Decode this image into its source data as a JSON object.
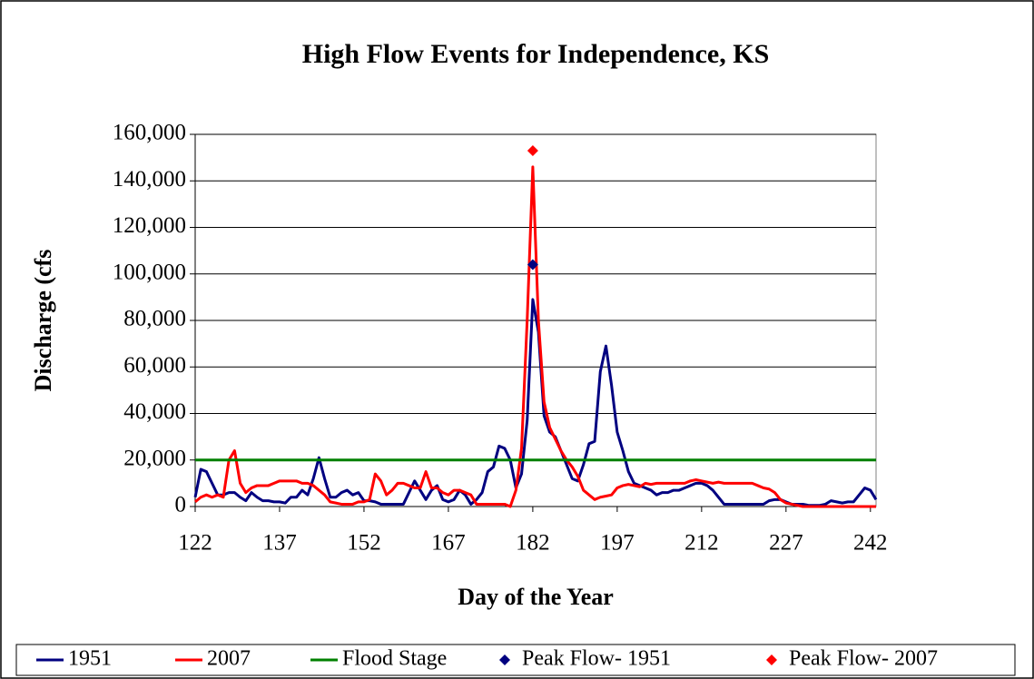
{
  "chart_data": {
    "type": "line",
    "title": "High Flow Events for Independence, KS",
    "xlabel": "Day of the Year",
    "ylabel": "Discharge (cfs",
    "x": [
      122,
      123,
      124,
      125,
      126,
      127,
      128,
      129,
      130,
      131,
      132,
      133,
      134,
      135,
      136,
      137,
      138,
      139,
      140,
      141,
      142,
      143,
      144,
      145,
      146,
      147,
      148,
      149,
      150,
      151,
      152,
      153,
      154,
      155,
      156,
      157,
      158,
      159,
      160,
      161,
      162,
      163,
      164,
      165,
      166,
      167,
      168,
      169,
      170,
      171,
      172,
      173,
      174,
      175,
      176,
      177,
      178,
      179,
      180,
      181,
      182,
      183,
      184,
      185,
      186,
      187,
      188,
      189,
      190,
      191,
      192,
      193,
      194,
      195,
      196,
      197,
      198,
      199,
      200,
      201,
      202,
      203,
      204,
      205,
      206,
      207,
      208,
      209,
      210,
      211,
      212,
      213,
      214,
      215,
      216,
      217,
      218,
      219,
      220,
      221,
      222,
      223,
      224,
      225,
      226,
      227,
      228,
      229,
      230,
      231,
      232,
      233,
      234,
      235,
      236,
      237,
      238,
      239,
      240,
      241,
      242,
      243
    ],
    "series": [
      {
        "name": "1951",
        "color": "#000080",
        "values": [
          4000,
          16000,
          15000,
          10000,
          5000,
          5000,
          6000,
          6000,
          4000,
          2500,
          6000,
          4000,
          2500,
          2500,
          2000,
          2000,
          1500,
          4000,
          4000,
          7000,
          5000,
          12000,
          21000,
          12000,
          4000,
          4000,
          6000,
          7000,
          5000,
          6000,
          2500,
          2500,
          2000,
          1000,
          1000,
          1000,
          1000,
          1000,
          6000,
          11000,
          7000,
          3000,
          7000,
          9000,
          3000,
          2000,
          3000,
          7000,
          5000,
          1000,
          3000,
          6000,
          15000,
          17000,
          26000,
          25000,
          20000,
          8000,
          14000,
          37000,
          89000,
          75000,
          39000,
          32000,
          30000,
          24000,
          18000,
          12000,
          11000,
          18000,
          27000,
          28000,
          58000,
          69000,
          52000,
          32000,
          24000,
          15000,
          10000,
          9000,
          8000,
          7000,
          5000,
          6000,
          6000,
          7000,
          7000,
          8000,
          9000,
          10000,
          10000,
          9000,
          7000,
          4000,
          1000,
          1000,
          1000,
          1000,
          1000,
          1000,
          1000,
          1000,
          2500,
          3000,
          3000,
          2000,
          1000,
          1000,
          1000,
          500,
          500,
          500,
          1000,
          2500,
          2000,
          1500,
          2000,
          2000,
          5000,
          8000,
          7000,
          3000
        ]
      },
      {
        "name": "2007",
        "color": "#ff0000",
        "values": [
          2000,
          4000,
          5000,
          4000,
          5000,
          4000,
          20000,
          24000,
          10000,
          6000,
          8000,
          9000,
          9000,
          9000,
          10000,
          11000,
          11000,
          11000,
          11000,
          10000,
          10000,
          9000,
          7000,
          5000,
          2000,
          1500,
          1000,
          1000,
          1000,
          2000,
          2000,
          3000,
          14000,
          11000,
          5000,
          7000,
          10000,
          10000,
          9000,
          8000,
          8000,
          15000,
          8000,
          8000,
          6000,
          5000,
          7000,
          7000,
          6000,
          5000,
          1000,
          1000,
          1000,
          1000,
          1000,
          1000,
          0,
          7000,
          25000,
          80000,
          146000,
          80000,
          45000,
          34000,
          29000,
          24000,
          20000,
          17000,
          13000,
          7000,
          5000,
          3000,
          4000,
          4500,
          5000,
          8000,
          9000,
          9500,
          9000,
          8500,
          10000,
          9500,
          10000,
          10000,
          10000,
          10000,
          10000,
          10000,
          11000,
          11500,
          11000,
          10500,
          10000,
          10500,
          10000,
          10000,
          10000,
          10000,
          10000,
          10000,
          9000,
          8000,
          7500,
          6000,
          3000,
          1500,
          1000,
          500,
          0,
          0,
          0,
          0,
          0,
          0,
          0,
          0,
          0,
          0,
          0,
          0,
          0,
          0
        ]
      },
      {
        "name": "Flood Stage",
        "color": "#008000",
        "x": [
          122,
          243
        ],
        "values": [
          20000,
          20000
        ]
      },
      {
        "name": "Peak Flow- 1951",
        "color": "#000080",
        "marker": "diamond",
        "x": [
          182
        ],
        "values": [
          104000
        ]
      },
      {
        "name": "Peak Flow- 2007",
        "color": "#ff0000",
        "marker": "diamond",
        "x": [
          182
        ],
        "values": [
          153000
        ]
      }
    ],
    "xlim": [
      122,
      243
    ],
    "xticks": [
      122,
      137,
      152,
      167,
      182,
      197,
      212,
      227,
      242
    ],
    "ylim": [
      0,
      160000
    ],
    "yticks": [
      0,
      {
        "value": 20000,
        "label": "20,000"
      },
      {
        "value": 40000,
        "label": "40,000"
      },
      {
        "value": 60000,
        "label": "60,000"
      },
      {
        "value": 80000,
        "label": "80,000"
      },
      {
        "value": 100000,
        "label": "100,000"
      },
      {
        "value": 120000,
        "label": "120,000"
      },
      {
        "value": 140000,
        "label": "140,000"
      },
      {
        "value": 160000,
        "label": "160,000"
      }
    ],
    "grid": true,
    "legend": "bottom"
  }
}
